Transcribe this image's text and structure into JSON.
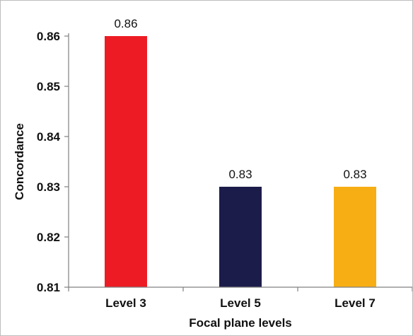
{
  "chart_data": {
    "type": "bar",
    "categories": [
      "Level 3",
      "Level 5",
      "Level 7"
    ],
    "values": [
      0.86,
      0.83,
      0.83
    ],
    "data_labels": [
      "0.86",
      "0.83",
      "0.83"
    ],
    "colors": [
      "#ED1C24",
      "#1C1C4B",
      "#F7AE14"
    ],
    "xlabel": "Focal plane levels",
    "ylabel": "Concordance",
    "ylim": [
      0.81,
      0.86
    ],
    "yticks": [
      0.81,
      0.82,
      0.83,
      0.84,
      0.85,
      0.86
    ],
    "ytick_labels": [
      "0.81",
      "0.82",
      "0.83",
      "0.84",
      "0.85",
      "0.86"
    ],
    "grid": false,
    "legend": "none"
  }
}
